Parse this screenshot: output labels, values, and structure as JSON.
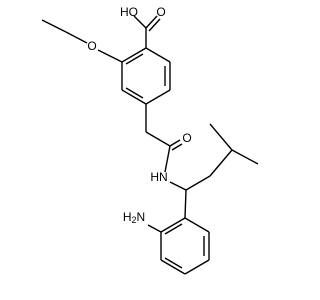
{
  "atoms": {
    "carboxyl_oh": "HO",
    "carboxyl_o": "O",
    "ether_o": "O",
    "amide_o": "O",
    "amide_nh": "HN",
    "amine": {
      "main": "H",
      "sub": "2",
      "tail": "N"
    }
  }
}
